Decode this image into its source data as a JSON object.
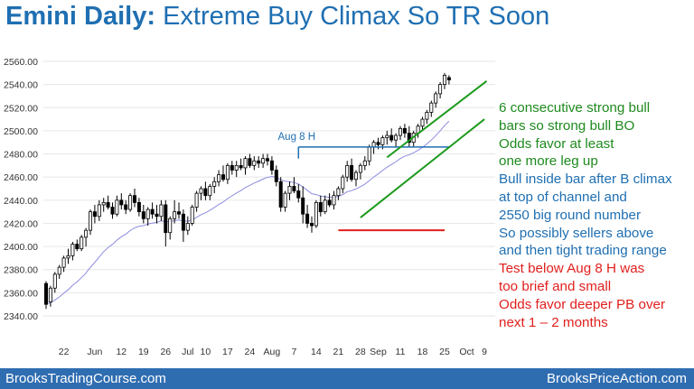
{
  "title": {
    "prefix": "Emini Daily:",
    "rest": "Extreme Buy Climax So TR Soon"
  },
  "footer": {
    "left": "BrooksTradingCourse.com",
    "right": "BrooksPriceAction.com"
  },
  "notes": [
    {
      "text": "6 consecutive strong bull",
      "color": "#1e8a1e"
    },
    {
      "text": "bars so strong bull BO",
      "color": "#1e8a1e"
    },
    {
      "text": "Odds favor at least",
      "color": "#1e8a1e"
    },
    {
      "text": "one more leg up",
      "color": "#1e8a1e"
    },
    {
      "text": "Bull inside bar after B climax",
      "color": "#1f6fb2"
    },
    {
      "text": "at top of channel and",
      "color": "#1f6fb2"
    },
    {
      "text": "2550 big round number",
      "color": "#1f6fb2"
    },
    {
      "text": "So possibly sellers above",
      "color": "#1f6fb2"
    },
    {
      "text": "and then tight trading range",
      "color": "#1f6fb2"
    },
    {
      "text": "Test below Aug 8 H was",
      "color": "#e0201e"
    },
    {
      "text": "too brief and small",
      "color": "#e0201e"
    },
    {
      "text": "Odds favor deeper PB over",
      "color": "#e0201e"
    },
    {
      "text": "next 1 – 2 months",
      "color": "#e0201e"
    }
  ],
  "chart_data": {
    "type": "candlestick",
    "y_ticks": [
      "2340.00",
      "2360.00",
      "2380.00",
      "2400.00",
      "2420.00",
      "2440.00",
      "2460.00",
      "2480.00",
      "2500.00",
      "2520.00",
      "2540.00",
      "2560.00"
    ],
    "ylim": [
      2335,
      2565
    ],
    "x_ticks": [
      {
        "label": "22",
        "bar": 4
      },
      {
        "label": "Jun",
        "bar": 11
      },
      {
        "label": "12",
        "bar": 17
      },
      {
        "label": "19",
        "bar": 22
      },
      {
        "label": "26",
        "bar": 27
      },
      {
        "label": "Jul",
        "bar": 32
      },
      {
        "label": "10",
        "bar": 36
      },
      {
        "label": "17",
        "bar": 41
      },
      {
        "label": "24",
        "bar": 46
      },
      {
        "label": "Aug",
        "bar": 51
      },
      {
        "label": "7",
        "bar": 56
      },
      {
        "label": "14",
        "bar": 61
      },
      {
        "label": "21",
        "bar": 66
      },
      {
        "label": "28",
        "bar": 71
      },
      {
        "label": "Sep",
        "bar": 75
      },
      {
        "label": "11",
        "bar": 80
      },
      {
        "label": "18",
        "bar": 85
      },
      {
        "label": "25",
        "bar": 90
      },
      {
        "label": "Oct",
        "bar": 95
      },
      {
        "label": "9",
        "bar": 99
      }
    ],
    "candles": [
      [
        2368,
        2370,
        2346,
        2350
      ],
      [
        2352,
        2366,
        2348,
        2364
      ],
      [
        2364,
        2378,
        2360,
        2376
      ],
      [
        2376,
        2384,
        2372,
        2382
      ],
      [
        2382,
        2392,
        2378,
        2390
      ],
      [
        2390,
        2398,
        2385,
        2392
      ],
      [
        2392,
        2404,
        2388,
        2402
      ],
      [
        2402,
        2406,
        2396,
        2398
      ],
      [
        2398,
        2410,
        2396,
        2408
      ],
      [
        2408,
        2416,
        2400,
        2414
      ],
      [
        2414,
        2432,
        2410,
        2430
      ],
      [
        2430,
        2436,
        2420,
        2426
      ],
      [
        2426,
        2440,
        2422,
        2436
      ],
      [
        2436,
        2442,
        2430,
        2438
      ],
      [
        2438,
        2444,
        2432,
        2434
      ],
      [
        2434,
        2438,
        2424,
        2428
      ],
      [
        2428,
        2444,
        2426,
        2440
      ],
      [
        2440,
        2446,
        2432,
        2436
      ],
      [
        2436,
        2440,
        2428,
        2432
      ],
      [
        2432,
        2446,
        2430,
        2444
      ],
      [
        2444,
        2450,
        2434,
        2438
      ],
      [
        2438,
        2442,
        2426,
        2430
      ],
      [
        2430,
        2436,
        2420,
        2424
      ],
      [
        2424,
        2434,
        2418,
        2432
      ],
      [
        2432,
        2438,
        2424,
        2428
      ],
      [
        2428,
        2436,
        2420,
        2426
      ],
      [
        2426,
        2440,
        2422,
        2436
      ],
      [
        2436,
        2440,
        2400,
        2412
      ],
      [
        2412,
        2426,
        2406,
        2424
      ],
      [
        2424,
        2440,
        2420,
        2430
      ],
      [
        2430,
        2438,
        2424,
        2428
      ],
      [
        2428,
        2432,
        2404,
        2414
      ],
      [
        2414,
        2426,
        2410,
        2420
      ],
      [
        2420,
        2436,
        2418,
        2434
      ],
      [
        2434,
        2448,
        2430,
        2446
      ],
      [
        2446,
        2452,
        2440,
        2450
      ],
      [
        2450,
        2456,
        2440,
        2444
      ],
      [
        2444,
        2454,
        2440,
        2452
      ],
      [
        2452,
        2460,
        2446,
        2456
      ],
      [
        2456,
        2466,
        2452,
        2462
      ],
      [
        2462,
        2470,
        2456,
        2458
      ],
      [
        2458,
        2472,
        2454,
        2470
      ],
      [
        2470,
        2474,
        2462,
        2466
      ],
      [
        2466,
        2474,
        2460,
        2470
      ],
      [
        2470,
        2476,
        2466,
        2468
      ],
      [
        2468,
        2478,
        2462,
        2476
      ],
      [
        2476,
        2480,
        2468,
        2470
      ],
      [
        2470,
        2478,
        2466,
        2474
      ],
      [
        2474,
        2478,
        2468,
        2472
      ],
      [
        2472,
        2480,
        2468,
        2476
      ],
      [
        2476,
        2480,
        2470,
        2474
      ],
      [
        2474,
        2478,
        2462,
        2466
      ],
      [
        2466,
        2470,
        2452,
        2456
      ],
      [
        2456,
        2460,
        2430,
        2434
      ],
      [
        2434,
        2448,
        2430,
        2446
      ],
      [
        2446,
        2456,
        2440,
        2452
      ],
      [
        2452,
        2460,
        2446,
        2448
      ],
      [
        2448,
        2454,
        2438,
        2442
      ],
      [
        2442,
        2452,
        2420,
        2428
      ],
      [
        2428,
        2436,
        2416,
        2420
      ],
      [
        2420,
        2426,
        2412,
        2418
      ],
      [
        2418,
        2440,
        2416,
        2438
      ],
      [
        2438,
        2444,
        2426,
        2430
      ],
      [
        2430,
        2444,
        2428,
        2440
      ],
      [
        2440,
        2446,
        2434,
        2436
      ],
      [
        2436,
        2448,
        2432,
        2444
      ],
      [
        2444,
        2452,
        2440,
        2450
      ],
      [
        2450,
        2462,
        2446,
        2460
      ],
      [
        2460,
        2474,
        2456,
        2470
      ],
      [
        2470,
        2476,
        2456,
        2458
      ],
      [
        2458,
        2466,
        2452,
        2464
      ],
      [
        2464,
        2472,
        2458,
        2470
      ],
      [
        2470,
        2478,
        2466,
        2474
      ],
      [
        2474,
        2488,
        2470,
        2486
      ],
      [
        2486,
        2492,
        2480,
        2490
      ],
      [
        2490,
        2494,
        2484,
        2488
      ],
      [
        2488,
        2496,
        2484,
        2494
      ],
      [
        2494,
        2500,
        2488,
        2496
      ],
      [
        2496,
        2502,
        2490,
        2492
      ],
      [
        2492,
        2498,
        2486,
        2496
      ],
      [
        2496,
        2504,
        2492,
        2502
      ],
      [
        2502,
        2506,
        2494,
        2498
      ],
      [
        2498,
        2504,
        2486,
        2490
      ],
      [
        2490,
        2500,
        2486,
        2498
      ],
      [
        2498,
        2506,
        2494,
        2504
      ],
      [
        2504,
        2512,
        2500,
        2510
      ],
      [
        2510,
        2518,
        2506,
        2516
      ],
      [
        2516,
        2526,
        2512,
        2524
      ],
      [
        2524,
        2534,
        2520,
        2532
      ],
      [
        2532,
        2542,
        2528,
        2540
      ],
      [
        2540,
        2550,
        2536,
        2548
      ],
      [
        2546,
        2548,
        2540,
        2544
      ]
    ],
    "annotations": [
      {
        "text": "Aug 8 H",
        "color": "#1f6fb2"
      }
    ]
  }
}
